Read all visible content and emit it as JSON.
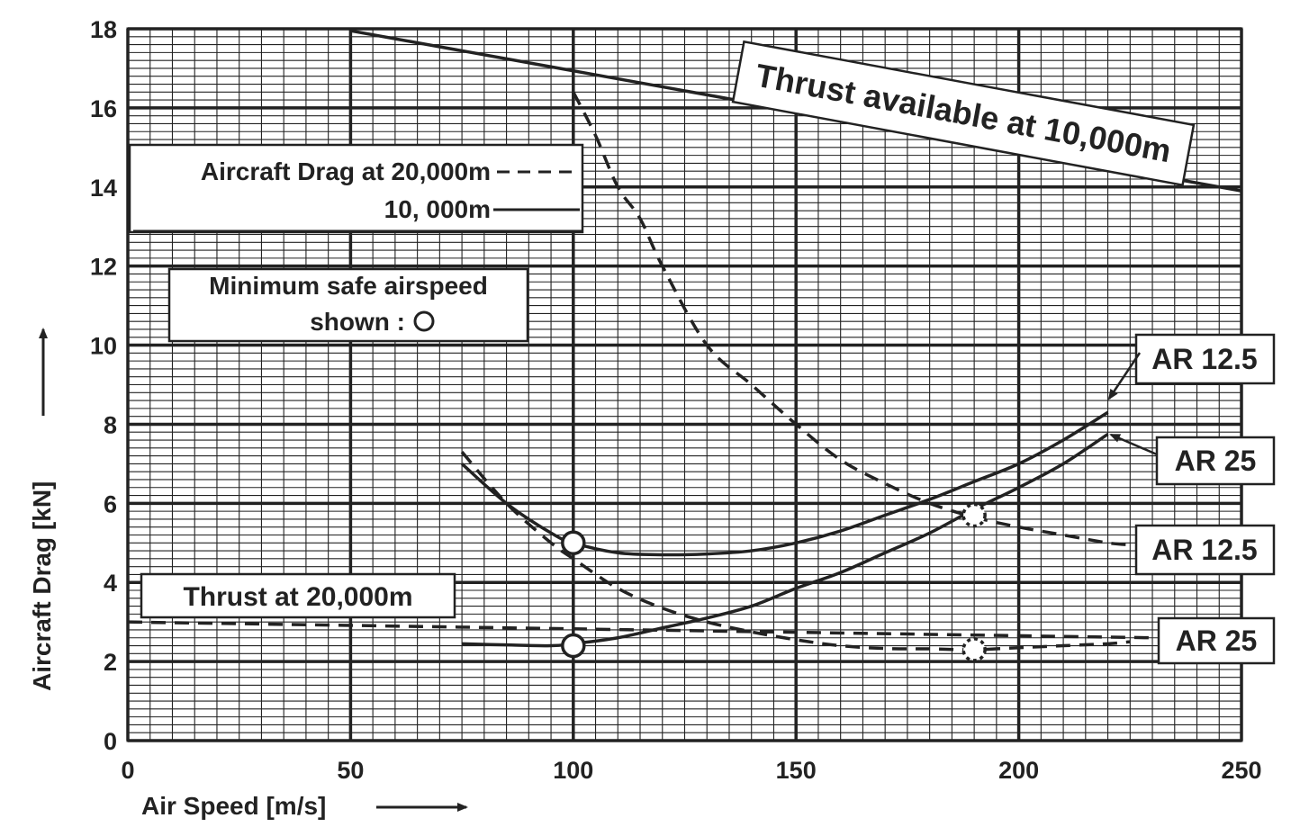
{
  "chart_data": {
    "type": "line",
    "xlabel": "Air Speed [m/s]",
    "ylabel": "Aircraft Drag [kN]",
    "xlim": [
      0,
      250
    ],
    "ylim": [
      0,
      18
    ],
    "x_ticks": [
      0,
      50,
      100,
      150,
      200,
      250
    ],
    "y_ticks": [
      0,
      2,
      4,
      6,
      8,
      10,
      12,
      14,
      16,
      18
    ],
    "grid": true,
    "series": [
      {
        "name": "Thrust available at 10,000m",
        "style": "solid",
        "x": [
          50,
          250
        ],
        "y": [
          17.95,
          13.9
        ]
      },
      {
        "name": "Thrust at 20,000m",
        "style": "dashed",
        "x": [
          0,
          230
        ],
        "y": [
          3.0,
          2.6
        ]
      },
      {
        "name": "AR 12.5",
        "altitude": "10,000m",
        "style": "solid",
        "x": [
          75,
          85,
          95,
          100,
          110,
          120,
          130,
          140,
          150,
          160,
          170,
          180,
          190,
          200,
          210,
          220
        ],
        "y": [
          7.0,
          6.0,
          5.25,
          5.0,
          4.75,
          4.7,
          4.72,
          4.8,
          5.0,
          5.3,
          5.7,
          6.1,
          6.55,
          7.0,
          7.6,
          8.3
        ]
      },
      {
        "name": "AR 25",
        "altitude": "10,000m",
        "style": "solid",
        "x": [
          75,
          85,
          95,
          100,
          110,
          120,
          130,
          140,
          150,
          160,
          170,
          180,
          190,
          200,
          210,
          220
        ],
        "y": [
          2.45,
          2.42,
          2.4,
          2.45,
          2.6,
          2.85,
          3.1,
          3.4,
          3.85,
          4.25,
          4.75,
          5.25,
          5.85,
          6.4,
          7.0,
          7.75
        ]
      },
      {
        "name": "AR 12.5",
        "altitude": "20,000m",
        "style": "dashed",
        "x": [
          100,
          105,
          110,
          115,
          120,
          130,
          140,
          150,
          160,
          170,
          180,
          190,
          200,
          210,
          220,
          225
        ],
        "y": [
          16.4,
          15.3,
          14.0,
          13.2,
          12.0,
          10.0,
          9.0,
          8.0,
          7.1,
          6.5,
          6.0,
          5.65,
          5.4,
          5.2,
          5.0,
          4.95
        ]
      },
      {
        "name": "AR 25",
        "altitude": "20,000m",
        "style": "dashed",
        "x": [
          75,
          85,
          95,
          100,
          110,
          120,
          130,
          140,
          150,
          160,
          170,
          180,
          190,
          200,
          210,
          220,
          225
        ],
        "y": [
          7.3,
          6.0,
          5.0,
          4.6,
          3.85,
          3.35,
          3.0,
          2.75,
          2.55,
          2.4,
          2.33,
          2.32,
          2.3,
          2.35,
          2.4,
          2.45,
          2.5
        ]
      }
    ],
    "min_safe_markers": [
      {
        "x": 100,
        "y": 5.0,
        "style": "solid"
      },
      {
        "x": 100,
        "y": 2.4,
        "style": "solid"
      },
      {
        "x": 190,
        "y": 5.7,
        "style": "dotted"
      },
      {
        "x": 190,
        "y": 2.3,
        "style": "dotted"
      }
    ],
    "annotations": {
      "thrust_10k": "Thrust available at 10,000m",
      "thrust_20k": "Thrust at 20,000m",
      "legend_line1": "Aircraft Drag at 20,000m",
      "legend_line2": "10, 000m",
      "min_safe_line1": "Minimum safe airspeed",
      "min_safe_line2": "shown :",
      "ar_labels": [
        "AR 12.5",
        "AR 25",
        "AR 12.5",
        "AR 25"
      ]
    }
  }
}
